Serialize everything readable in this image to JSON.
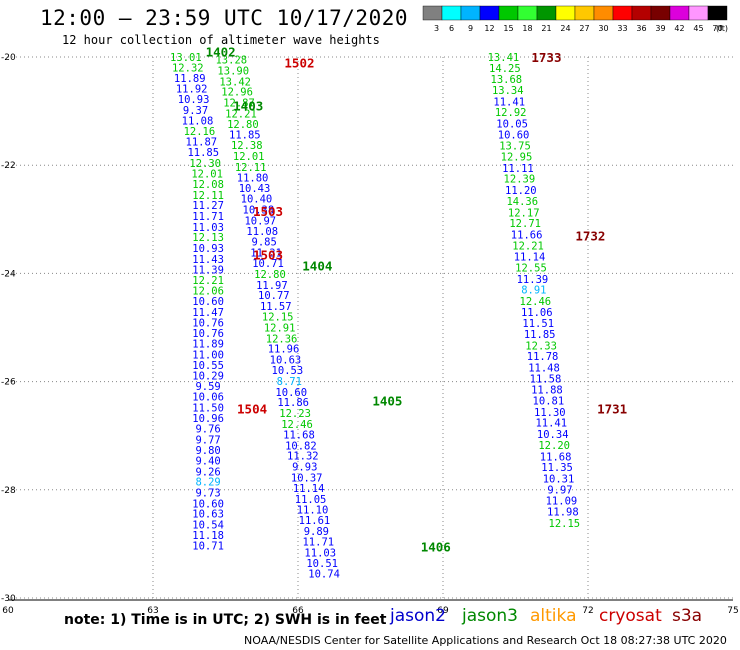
{
  "header": {
    "title": "12:00 – 23:59 UTC 10/17/2020",
    "subtitle": "12 hour collection of altimeter wave heights"
  },
  "colorbar": {
    "unit_label": "(ft)",
    "ticks": [
      "3",
      "6",
      "9",
      "12",
      "15",
      "18",
      "21",
      "24",
      "27",
      "30",
      "33",
      "36",
      "39",
      "42",
      "45",
      "70"
    ],
    "colors": [
      "#808080",
      "#00ffff",
      "#00b4ff",
      "#0000ff",
      "#00c800",
      "#32ff32",
      "#009600",
      "#ffff00",
      "#ffc800",
      "#ff8c00",
      "#ff0000",
      "#b40000",
      "#780000",
      "#dc00dc",
      "#ff96ff",
      "#000000"
    ]
  },
  "footer": {
    "note": "note:  1) Time is in UTC;  2) SWH is in feet",
    "credit": "NOAA/NESDIS Center for Satellite Applications and Research    Oct 18 08:27:38 UTC 2020",
    "satellites": [
      {
        "name": "jason2",
        "color": "#0000cc"
      },
      {
        "name": "jason3",
        "color": "#008800"
      },
      {
        "name": "altika",
        "color": "#ff9900"
      },
      {
        "name": "cryosat",
        "color": "#cc0000"
      },
      {
        "name": "s3a",
        "color": "#880000"
      }
    ]
  },
  "chart_data": {
    "type": "scatter",
    "title": "12:00 – 23:59 UTC 10/17/2020",
    "subtitle": "12 hour collection of altimeter wave heights",
    "xlabel": "",
    "ylabel": "",
    "xlim": [
      60,
      75
    ],
    "ylim": [
      -30,
      -20
    ],
    "xticks": [
      60,
      63,
      66,
      69,
      72,
      75
    ],
    "yticks": [
      -20,
      -22,
      -24,
      -26,
      -28,
      -30
    ],
    "ytick_labels": [
      "-20",
      "-22",
      "-24",
      "-26",
      "-28",
      "-30"
    ],
    "grid": true,
    "value_unit": "ft",
    "series": [
      {
        "name": "jason3",
        "color_by_value": true,
        "points": [
          {
            "x": 63.68,
            "y": -20.0,
            "v": "13.01"
          },
          {
            "x": 63.72,
            "y": -20.19,
            "v": "12.32"
          },
          {
            "x": 63.76,
            "y": -20.39,
            "v": "11.89"
          },
          {
            "x": 63.8,
            "y": -20.58,
            "v": "11.92"
          },
          {
            "x": 63.84,
            "y": -20.78,
            "v": "10.93"
          },
          {
            "x": 63.88,
            "y": -20.98,
            "v": "9.37"
          },
          {
            "x": 63.92,
            "y": -21.17,
            "v": "11.08"
          },
          {
            "x": 63.96,
            "y": -21.37,
            "v": "12.16"
          },
          {
            "x": 64.0,
            "y": -21.56,
            "v": "11.87"
          },
          {
            "x": 64.04,
            "y": -21.76,
            "v": "11.85"
          },
          {
            "x": 64.08,
            "y": -21.96,
            "v": "12.30"
          },
          {
            "x": 64.12,
            "y": -22.15,
            "v": "12.01"
          },
          {
            "x": 64.14,
            "y": -22.35,
            "v": "12.08"
          },
          {
            "x": 64.14,
            "y": -22.55,
            "v": "12.11"
          },
          {
            "x": 64.14,
            "y": -22.74,
            "v": "11.27"
          },
          {
            "x": 64.14,
            "y": -22.94,
            "v": "11.71"
          },
          {
            "x": 64.14,
            "y": -23.14,
            "v": "11.03"
          },
          {
            "x": 64.14,
            "y": -23.33,
            "v": "12.13"
          },
          {
            "x": 64.14,
            "y": -23.53,
            "v": "10.93"
          },
          {
            "x": 64.14,
            "y": -23.73,
            "v": "11.43"
          },
          {
            "x": 64.14,
            "y": -23.93,
            "v": "11.39"
          },
          {
            "x": 64.14,
            "y": -24.12,
            "v": "12.21"
          },
          {
            "x": 64.14,
            "y": -24.32,
            "v": "12.06"
          },
          {
            "x": 64.14,
            "y": -24.51,
            "v": "10.60"
          },
          {
            "x": 64.14,
            "y": -24.71,
            "v": "11.47"
          },
          {
            "x": 64.14,
            "y": -24.91,
            "v": "10.76"
          },
          {
            "x": 64.14,
            "y": -25.1,
            "v": "10.76"
          },
          {
            "x": 64.14,
            "y": -25.3,
            "v": "11.89"
          },
          {
            "x": 64.14,
            "y": -25.5,
            "v": "11.00"
          },
          {
            "x": 64.14,
            "y": -25.69,
            "v": "10.55"
          },
          {
            "x": 64.14,
            "y": -25.89,
            "v": "10.29"
          },
          {
            "x": 64.14,
            "y": -26.08,
            "v": "9.59"
          },
          {
            "x": 64.14,
            "y": -26.28,
            "v": "10.06"
          },
          {
            "x": 64.14,
            "y": -26.48,
            "v": "11.50"
          },
          {
            "x": 64.14,
            "y": -26.67,
            "v": "10.96"
          },
          {
            "x": 64.14,
            "y": -26.87,
            "v": "9.76"
          },
          {
            "x": 64.14,
            "y": -27.07,
            "v": "9.77"
          },
          {
            "x": 64.14,
            "y": -27.26,
            "v": "9.80"
          },
          {
            "x": 64.14,
            "y": -27.46,
            "v": "9.40"
          },
          {
            "x": 64.14,
            "y": -27.66,
            "v": "9.26"
          },
          {
            "x": 64.14,
            "y": -27.85,
            "v": "8.29"
          },
          {
            "x": 64.14,
            "y": -28.05,
            "v": "9.73"
          },
          {
            "x": 64.14,
            "y": -28.25,
            "v": "10.60"
          },
          {
            "x": 64.14,
            "y": -28.44,
            "v": "10.63"
          },
          {
            "x": 64.14,
            "y": -28.64,
            "v": "10.54"
          },
          {
            "x": 64.14,
            "y": -28.84,
            "v": "11.18"
          },
          {
            "x": 64.14,
            "y": -29.03,
            "v": "10.71"
          }
        ]
      },
      {
        "name": "jason3",
        "color_by_value": true,
        "points": [
          {
            "x": 64.62,
            "y": -20.05,
            "v": "13.28"
          },
          {
            "x": 64.66,
            "y": -20.25,
            "v": "13.90"
          },
          {
            "x": 64.7,
            "y": -20.45,
            "v": "13.42"
          },
          {
            "x": 64.74,
            "y": -20.64,
            "v": "12.96"
          },
          {
            "x": 64.78,
            "y": -20.84,
            "v": "12.87"
          },
          {
            "x": 64.82,
            "y": -21.04,
            "v": "12.21"
          },
          {
            "x": 64.86,
            "y": -21.24,
            "v": "12.80"
          },
          {
            "x": 64.9,
            "y": -21.43,
            "v": "11.85"
          },
          {
            "x": 64.94,
            "y": -21.63,
            "v": "12.38"
          },
          {
            "x": 64.98,
            "y": -21.83,
            "v": "12.01"
          },
          {
            "x": 65.02,
            "y": -22.03,
            "v": "12.11"
          },
          {
            "x": 65.06,
            "y": -22.23,
            "v": "11.80"
          },
          {
            "x": 65.1,
            "y": -22.42,
            "v": "10.43"
          },
          {
            "x": 65.14,
            "y": -22.62,
            "v": "10.40"
          },
          {
            "x": 65.18,
            "y": -22.82,
            "v": "10.38"
          },
          {
            "x": 65.22,
            "y": -23.02,
            "v": "10.97"
          },
          {
            "x": 65.26,
            "y": -23.22,
            "v": "11.08"
          },
          {
            "x": 65.3,
            "y": -23.41,
            "v": "9.85"
          },
          {
            "x": 65.34,
            "y": -23.61,
            "v": "11.31"
          },
          {
            "x": 65.38,
            "y": -23.81,
            "v": "10.71"
          },
          {
            "x": 65.42,
            "y": -24.01,
            "v": "12.80"
          },
          {
            "x": 65.46,
            "y": -24.21,
            "v": "11.97"
          },
          {
            "x": 65.5,
            "y": -24.4,
            "v": "10.77"
          },
          {
            "x": 65.54,
            "y": -24.6,
            "v": "11.57"
          },
          {
            "x": 65.58,
            "y": -24.8,
            "v": "12.15"
          },
          {
            "x": 65.62,
            "y": -25.0,
            "v": "12.91"
          },
          {
            "x": 65.66,
            "y": -25.2,
            "v": "12.36"
          },
          {
            "x": 65.7,
            "y": -25.39,
            "v": "11.96"
          },
          {
            "x": 65.74,
            "y": -25.59,
            "v": "10.63"
          },
          {
            "x": 65.78,
            "y": -25.79,
            "v": "10.53"
          },
          {
            "x": 65.82,
            "y": -25.99,
            "v": "8.71"
          },
          {
            "x": 65.86,
            "y": -26.19,
            "v": "10.60"
          },
          {
            "x": 65.9,
            "y": -26.38,
            "v": "11.86"
          },
          {
            "x": 65.94,
            "y": -26.58,
            "v": "12.23"
          },
          {
            "x": 65.98,
            "y": -26.78,
            "v": "12.46"
          },
          {
            "x": 66.02,
            "y": -26.98,
            "v": "11.68"
          },
          {
            "x": 66.06,
            "y": -27.18,
            "v": "10.82"
          },
          {
            "x": 66.1,
            "y": -27.37,
            "v": "11.32"
          },
          {
            "x": 66.14,
            "y": -27.57,
            "v": "9.93"
          },
          {
            "x": 66.18,
            "y": -27.77,
            "v": "10.37"
          },
          {
            "x": 66.22,
            "y": -27.97,
            "v": "11.14"
          },
          {
            "x": 66.26,
            "y": -28.17,
            "v": "11.05"
          },
          {
            "x": 66.3,
            "y": -28.36,
            "v": "11.10"
          },
          {
            "x": 66.34,
            "y": -28.56,
            "v": "11.61"
          },
          {
            "x": 66.38,
            "y": -28.76,
            "v": "9.89"
          },
          {
            "x": 66.42,
            "y": -28.96,
            "v": "11.71"
          },
          {
            "x": 66.46,
            "y": -29.16,
            "v": "11.03"
          },
          {
            "x": 66.5,
            "y": -29.35,
            "v": "10.51"
          },
          {
            "x": 66.54,
            "y": -29.55,
            "v": "10.74"
          }
        ]
      },
      {
        "name": "jason3",
        "color_by_value": true,
        "points": [
          {
            "x": 70.25,
            "y": -20.0,
            "v": "13.41"
          },
          {
            "x": 70.28,
            "y": -20.2,
            "v": "14.25"
          },
          {
            "x": 70.31,
            "y": -20.41,
            "v": "13.68"
          },
          {
            "x": 70.34,
            "y": -20.61,
            "v": "13.34"
          },
          {
            "x": 70.37,
            "y": -20.82,
            "v": "11.41"
          },
          {
            "x": 70.4,
            "y": -21.02,
            "v": "12.92"
          },
          {
            "x": 70.43,
            "y": -21.23,
            "v": "10.05"
          },
          {
            "x": 70.46,
            "y": -21.43,
            "v": "10.60"
          },
          {
            "x": 70.49,
            "y": -21.64,
            "v": "13.75"
          },
          {
            "x": 70.52,
            "y": -21.84,
            "v": "12.95"
          },
          {
            "x": 70.55,
            "y": -22.05,
            "v": "11.11"
          },
          {
            "x": 70.58,
            "y": -22.25,
            "v": "12.39"
          },
          {
            "x": 70.61,
            "y": -22.46,
            "v": "11.20"
          },
          {
            "x": 70.64,
            "y": -22.66,
            "v": "14.36"
          },
          {
            "x": 70.67,
            "y": -22.87,
            "v": "12.17"
          },
          {
            "x": 70.7,
            "y": -23.07,
            "v": "12.71"
          },
          {
            "x": 70.73,
            "y": -23.28,
            "v": "11.66"
          },
          {
            "x": 70.76,
            "y": -23.48,
            "v": "12.21"
          },
          {
            "x": 70.79,
            "y": -23.69,
            "v": "11.14"
          },
          {
            "x": 70.82,
            "y": -23.89,
            "v": "12.55"
          },
          {
            "x": 70.85,
            "y": -24.1,
            "v": "11.39"
          },
          {
            "x": 70.88,
            "y": -24.3,
            "v": "8.91"
          },
          {
            "x": 70.91,
            "y": -24.51,
            "v": "12.46"
          },
          {
            "x": 70.94,
            "y": -24.71,
            "v": "11.06"
          },
          {
            "x": 70.97,
            "y": -24.92,
            "v": "11.51"
          },
          {
            "x": 71.0,
            "y": -25.12,
            "v": "11.85"
          },
          {
            "x": 71.03,
            "y": -25.33,
            "v": "12.33"
          },
          {
            "x": 71.06,
            "y": -25.53,
            "v": "11.78"
          },
          {
            "x": 71.09,
            "y": -25.74,
            "v": "11.48"
          },
          {
            "x": 71.12,
            "y": -25.94,
            "v": "11.58"
          },
          {
            "x": 71.15,
            "y": -26.15,
            "v": "11.88"
          },
          {
            "x": 71.18,
            "y": -26.35,
            "v": "10.81"
          },
          {
            "x": 71.21,
            "y": -26.56,
            "v": "11.30"
          },
          {
            "x": 71.24,
            "y": -26.76,
            "v": "11.41"
          },
          {
            "x": 71.27,
            "y": -26.97,
            "v": "10.34"
          },
          {
            "x": 71.3,
            "y": -27.17,
            "v": "12.20"
          },
          {
            "x": 71.33,
            "y": -27.38,
            "v": "11.68"
          },
          {
            "x": 71.36,
            "y": -27.58,
            "v": "11.35"
          },
          {
            "x": 71.39,
            "y": -27.79,
            "v": "10.31"
          },
          {
            "x": 71.42,
            "y": -27.99,
            "v": "9.97"
          },
          {
            "x": 71.45,
            "y": -28.2,
            "v": "11.09"
          },
          {
            "x": 71.48,
            "y": -28.4,
            "v": "11.98"
          },
          {
            "x": 71.51,
            "y": -28.61,
            "v": "12.15"
          }
        ]
      }
    ],
    "time_labels": [
      {
        "x": 64.4,
        "y": -19.9,
        "text": "1402",
        "color": "#008800"
      },
      {
        "x": 66.03,
        "y": -20.1,
        "text": "1502",
        "color": "#cc0000"
      },
      {
        "x": 64.97,
        "y": -20.9,
        "text": "1403",
        "color": "#008800"
      },
      {
        "x": 65.38,
        "y": -22.85,
        "text": "1503",
        "color": "#cc0000"
      },
      {
        "x": 65.38,
        "y": -23.65,
        "text": "1503",
        "color": "#cc0000"
      },
      {
        "x": 66.4,
        "y": -23.85,
        "text": "1404",
        "color": "#008800"
      },
      {
        "x": 65.05,
        "y": -26.5,
        "text": "1504",
        "color": "#cc0000"
      },
      {
        "x": 67.85,
        "y": -26.35,
        "text": "1405",
        "color": "#008800"
      },
      {
        "x": 68.85,
        "y": -29.05,
        "text": "1406",
        "color": "#008800"
      },
      {
        "x": 71.14,
        "y": -20.0,
        "text": "1733",
        "color": "#880000"
      },
      {
        "x": 72.05,
        "y": -23.3,
        "text": "1732",
        "color": "#880000"
      },
      {
        "x": 72.5,
        "y": -26.5,
        "text": "1731",
        "color": "#880000"
      }
    ]
  }
}
